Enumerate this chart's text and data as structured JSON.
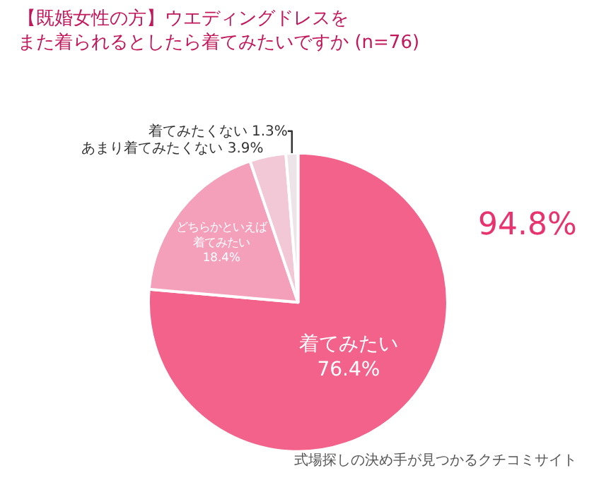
{
  "chart_data": {
    "type": "pie",
    "title": "【既婚女性の方】ウエディングドレスをまた着られるとしたら着てみたいですか (n=76)",
    "categories": [
      "着てみたい",
      "どちらかといえば着てみたい",
      "あまり着てみたくない",
      "着てみたくない"
    ],
    "values": [
      76.4,
      18.4,
      3.9,
      1.3
    ],
    "colors": [
      "#f2628a",
      "#f4a0bb",
      "#f2c8d6",
      "#ece4e8"
    ],
    "value_labels": [
      "76.4%",
      "18.4%",
      "3.9%",
      "1.3%"
    ],
    "annotations": [
      "94.8%",
      "式場探しの決め手が見つかるクチコミサイト"
    ],
    "legend": false
  }
}
